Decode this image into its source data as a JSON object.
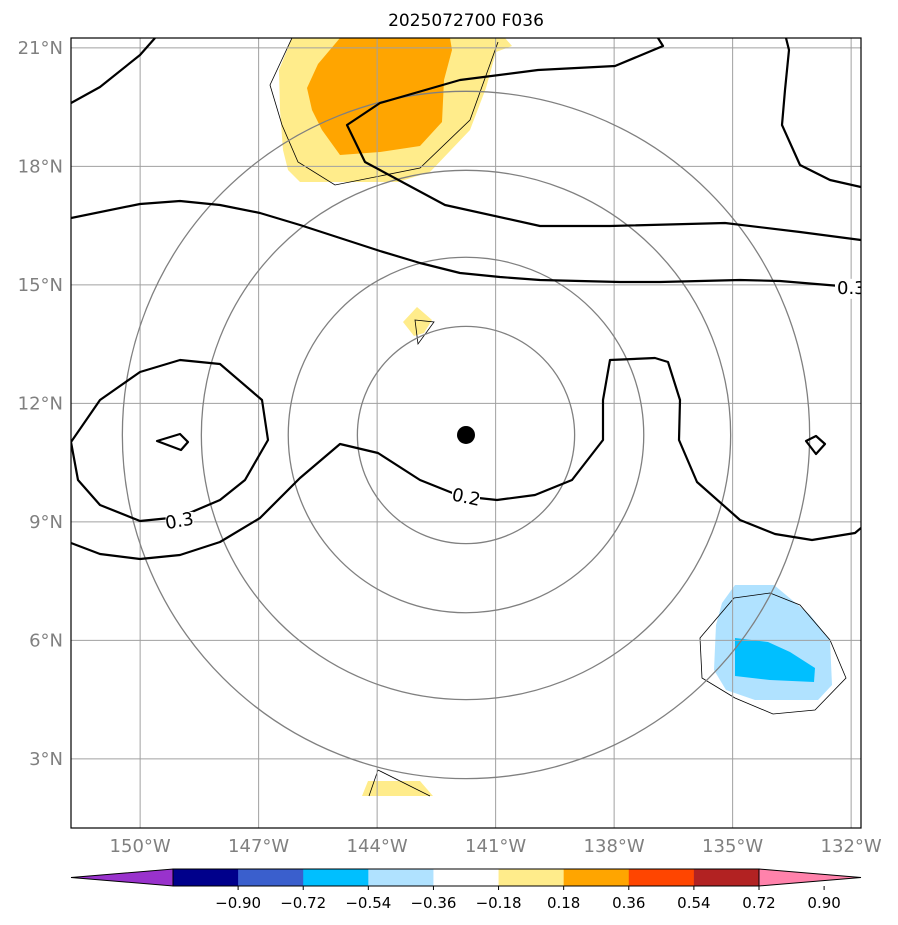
{
  "title": "2025072700 F036",
  "map": {
    "lon_range": [
      -151.75,
      -131.75
    ],
    "lat_range": [
      1.25,
      21.25
    ],
    "lon_ticks": [
      {
        "value": -150,
        "label": "150°W"
      },
      {
        "value": -147,
        "label": "147°W"
      },
      {
        "value": -144,
        "label": "144°W"
      },
      {
        "value": -141,
        "label": "141°W"
      },
      {
        "value": -138,
        "label": "138°W"
      },
      {
        "value": -135,
        "label": "135°W"
      },
      {
        "value": -132,
        "label": "132°W"
      }
    ],
    "lat_ticks": [
      {
        "value": 3,
        "label": "3°N"
      },
      {
        "value": 6,
        "label": "6°N"
      },
      {
        "value": 9,
        "label": "9°N"
      },
      {
        "value": 12,
        "label": "12°N"
      },
      {
        "value": 15,
        "label": "15°N"
      },
      {
        "value": 18,
        "label": "18°N"
      },
      {
        "value": 21,
        "label": "21°N"
      }
    ],
    "gridlines": true,
    "center_marker": {
      "lon": -141.75,
      "lat": 11.2
    },
    "range_rings_deg": [
      2.75,
      4.5,
      6.7,
      8.7
    ]
  },
  "contour_labels": [
    {
      "text": "0.3",
      "lon": -149.0,
      "lat": 9.0,
      "rotation": -10
    },
    {
      "text": "0.2",
      "lon": -141.75,
      "lat": 9.6,
      "rotation": 12
    },
    {
      "text": "0.3",
      "lon": -131.75,
      "lat": 14.9,
      "rotation": 0
    }
  ],
  "colorbar": {
    "colors": [
      "#9932CC",
      "#00008B",
      "#3A5FCD",
      "#00BFFF",
      "#B0E2FF",
      "#FFFFFF",
      "#FFEC8B",
      "#FFA500",
      "#FF4500",
      "#B22222",
      "#FF82AB"
    ],
    "ticks": [
      "−0.90",
      "−0.72",
      "−0.54",
      "−0.36",
      "−0.18",
      "0.18",
      "0.36",
      "0.54",
      "0.72",
      "0.90"
    ]
  }
}
